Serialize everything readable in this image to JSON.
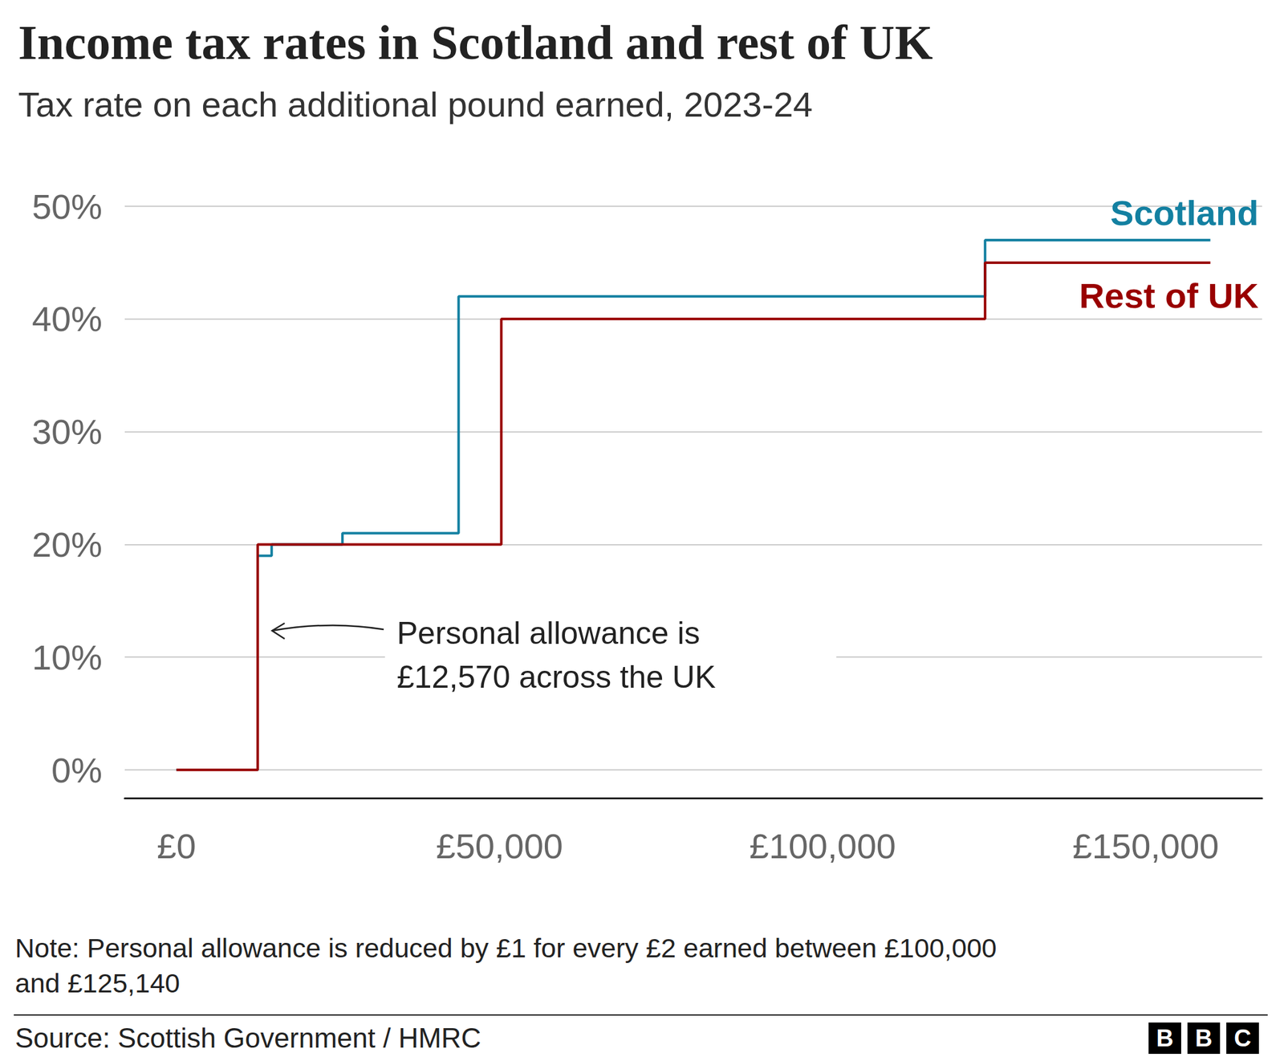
{
  "chart_data": {
    "type": "line",
    "title": "Income tax rates in Scotland and rest of UK",
    "subtitle": "Tax rate on each additional pound earned, 2023-24",
    "annotation": "Personal allowance is\n£12,570 across the UK",
    "note": [
      "Note: Personal allowance is reduced by £1 for every £2 earned between £100,000",
      "and £125,140"
    ],
    "source": "Source: Scottish Government / HMRC",
    "logo": "BBC",
    "line_style": "step",
    "grid": true,
    "xlim": [
      -8000,
      168000
    ],
    "xticks": [
      {
        "value": 0,
        "label": "£0"
      },
      {
        "value": 50000,
        "label": "£50,000"
      },
      {
        "value": 100000,
        "label": "£100,000"
      },
      {
        "value": 150000,
        "label": "£150,000"
      }
    ],
    "ylim": [
      -2.5,
      50
    ],
    "yticks": [
      {
        "value": 0,
        "label": "0%"
      },
      {
        "value": 10,
        "label": "10%"
      },
      {
        "value": 20,
        "label": "20%"
      },
      {
        "value": 30,
        "label": "30%"
      },
      {
        "value": 40,
        "label": "40%"
      },
      {
        "value": 50,
        "label": "50%"
      }
    ],
    "series": [
      {
        "name": "Scotland",
        "color": "#1380a1",
        "x": [
          0,
          12570,
          14732,
          25688,
          43662,
          125140,
          160000
        ],
        "values": [
          0,
          19,
          20,
          21,
          42,
          47,
          47
        ]
      },
      {
        "name": "Rest of UK",
        "color": "#990000",
        "x": [
          0,
          12570,
          50270,
          125140,
          160000
        ],
        "values": [
          0,
          20,
          40,
          45,
          45
        ]
      }
    ]
  }
}
